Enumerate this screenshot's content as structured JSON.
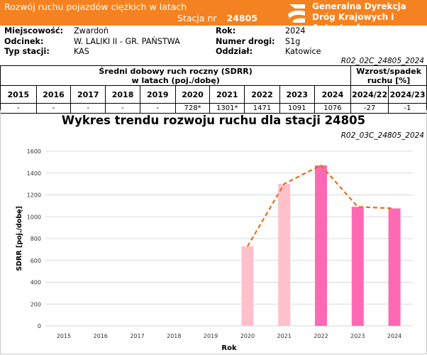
{
  "header": {
    "title": "Rozwój ruchu pojazdów ciężkich w latach",
    "station_label": "Stacja nr",
    "station_number": "24805",
    "org_line1": "Generalna Dyrekcja",
    "org_line2": "Dróg Krajowych i Autostrad",
    "brand_color": "#f58220"
  },
  "info": {
    "miejscowosc_label": "Miejscowość:",
    "miejscowosc": "Zwardoń",
    "odcinek_label": "Odcinek:",
    "odcinek": "W. LALIKI II - GR. PAŃSTWA",
    "typ_label": "Typ stacji:",
    "typ": "KAS",
    "rok_label": "Rok:",
    "rok": "2024",
    "numer_drogi_label": "Numer drogi:",
    "numer_drogi": "S1g",
    "oddzial_label": "Oddział:",
    "oddzial": "Katowice"
  },
  "table_ref": "R02_02C_24805_2024",
  "table": {
    "sdrr_header_line1": "Średni dobowy ruch roczny (SDRR)",
    "sdrr_header_line2": "w latach (poj./dobę)",
    "growth_header_line1": "Wzrost/spadek",
    "growth_header_line2": "ruchu [%]",
    "years": [
      "2015",
      "2016",
      "2017",
      "2018",
      "2019",
      "2020",
      "2021",
      "2022",
      "2023",
      "2024"
    ],
    "values": [
      "-",
      "-",
      "-",
      "-",
      "-",
      "728*",
      "1301*",
      "1471",
      "1091",
      "1076"
    ],
    "growth_cols": [
      "2024/22",
      "2024/23"
    ],
    "growth_values": [
      "-27",
      "-1"
    ]
  },
  "chart_ref": "R02_03C_24805_2024",
  "chart_data": {
    "type": "bar",
    "title": "Wykres trendu rozwoju ruchu dla stacji 24805",
    "xlabel": "Rok",
    "ylabel": "SDRR [poj./dobę]",
    "categories": [
      "2015",
      "2016",
      "2017",
      "2018",
      "2019",
      "2020",
      "2021",
      "2022",
      "2023",
      "2024"
    ],
    "values": [
      null,
      null,
      null,
      null,
      null,
      728,
      1301,
      1471,
      1091,
      1076
    ],
    "bar_colors": [
      null,
      null,
      null,
      null,
      null,
      "#ffc0cb",
      "#ffc0cb",
      "#ff69b4",
      "#ff69b4",
      "#ff69b4"
    ],
    "trend_line": {
      "color": "#e07020",
      "style": "dashed",
      "values": [
        null,
        null,
        null,
        null,
        null,
        728,
        1301,
        1471,
        1091,
        1076
      ]
    },
    "ylim": [
      0,
      1600
    ],
    "yticks": [
      0,
      200,
      400,
      600,
      800,
      1000,
      1200,
      1400,
      1600
    ],
    "grid": true
  }
}
